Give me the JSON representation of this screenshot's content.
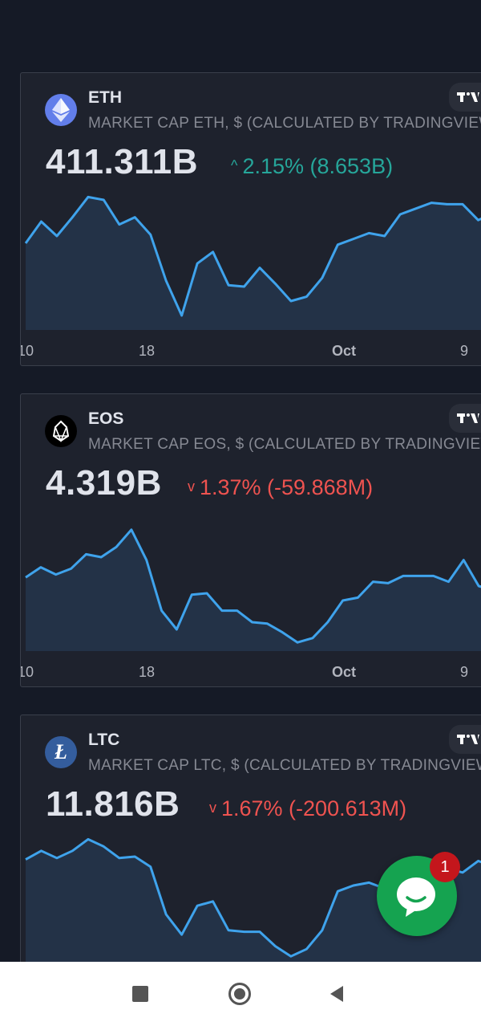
{
  "cards": [
    {
      "symbol": "ETH",
      "description": "MARKET CAP ETH, $ (CALCULATED BY TRADINGVIEW)",
      "price": "411.311B",
      "change_text": "2.15% (8.653B)",
      "direction": "up",
      "icon": "ethereum-icon",
      "icon_color": "#627eea",
      "x_ticks": [
        "10",
        "18",
        "Oct",
        "9"
      ]
    },
    {
      "symbol": "EOS",
      "description": "MARKET CAP EOS, $ (CALCULATED BY TRADINGVIEW)",
      "price": "4.319B",
      "change_text": "1.37% (-59.868M)",
      "direction": "down",
      "icon": "eos-icon",
      "icon_color": "#000000",
      "x_ticks": [
        "10",
        "18",
        "Oct",
        "9"
      ]
    },
    {
      "symbol": "LTC",
      "description": "MARKET CAP LTC, $ (CALCULATED BY TRADINGVIEW)",
      "price": "11.816B",
      "change_text": "1.67% (-200.613M)",
      "direction": "down",
      "icon": "litecoin-icon",
      "icon_color": "#345d9d",
      "x_ticks": []
    }
  ],
  "chat": {
    "badge_count": "1"
  },
  "colors": {
    "line": "#3fa3ec",
    "area": "#233247",
    "up": "#26a69a",
    "down": "#ef5350"
  },
  "chart_data": [
    {
      "type": "area",
      "title": "",
      "series": [
        {
          "values": [
            60,
            75,
            65,
            78,
            92,
            90,
            73,
            78,
            66,
            34,
            10,
            46,
            54,
            31,
            30,
            43,
            32,
            20,
            23,
            36,
            59,
            63,
            67,
            65,
            80,
            84,
            88,
            87,
            87,
            76,
            81
          ]
        }
      ],
      "x_tick_labels": [
        "10",
        "18",
        "Oct",
        "9"
      ],
      "ylim": [
        0,
        100
      ]
    },
    {
      "type": "area",
      "title": "",
      "series": [
        {
          "values": [
            51,
            58,
            53,
            57,
            67,
            65,
            72,
            84,
            63,
            28,
            15,
            39,
            40,
            28,
            28,
            20,
            19,
            13,
            6,
            9,
            20,
            35,
            37,
            48,
            47,
            52,
            52,
            52,
            48,
            63,
            45,
            42
          ]
        }
      ],
      "x_tick_labels": [
        "10",
        "18",
        "Oct",
        "9"
      ],
      "ylim": [
        0,
        100
      ]
    },
    {
      "type": "area",
      "title": "",
      "series": [
        {
          "values": [
            78,
            84,
            79,
            84,
            92,
            87,
            79,
            80,
            73,
            40,
            26,
            46,
            49,
            29,
            28,
            28,
            18,
            11,
            16,
            29,
            56,
            60,
            62,
            58,
            58,
            64,
            70,
            72,
            69,
            77,
            73
          ]
        }
      ],
      "x_tick_labels": [],
      "ylim": [
        0,
        100
      ]
    }
  ]
}
